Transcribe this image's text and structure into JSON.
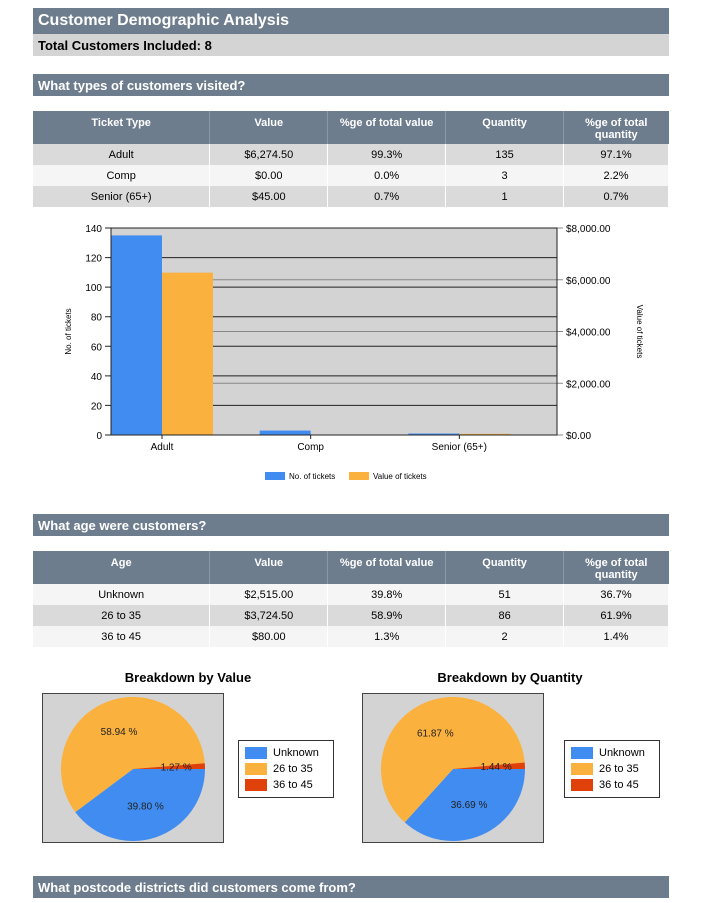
{
  "report": {
    "title": "Customer Demographic Analysis",
    "total_label": "Total Customers Included: 8"
  },
  "colors": {
    "header_bg": "#6e7d8e",
    "blue": "#418cf0",
    "orange": "#fab13e",
    "red": "#e0400a",
    "plot_bg": "#d3d3d3"
  },
  "sections": {
    "types": "What types of customers visited?",
    "age": "What age were customers?",
    "postcode": "What postcode districts did customers come from?"
  },
  "ticket_table": {
    "headers": [
      "Ticket Type",
      "Value",
      "%ge of total value",
      "Quantity",
      "%ge of total quantity"
    ],
    "rows": [
      [
        "Adult",
        "$6,274.50",
        "99.3%",
        "135",
        "97.1%"
      ],
      [
        "Comp",
        "$0.00",
        "0.0%",
        "3",
        "2.2%"
      ],
      [
        "Senior (65+)",
        "$45.00",
        "0.7%",
        "1",
        "0.7%"
      ]
    ]
  },
  "age_table": {
    "headers": [
      "Age",
      "Value",
      "%ge of total value",
      "Quantity",
      "%ge of total quantity"
    ],
    "rows": [
      [
        "Unknown",
        "$2,515.00",
        "39.8%",
        "51",
        "36.7%"
      ],
      [
        "26 to 35",
        "$3,724.50",
        "58.9%",
        "86",
        "61.9%"
      ],
      [
        "36 to 45",
        "$80.00",
        "1.3%",
        "2",
        "1.4%"
      ]
    ]
  },
  "chart_data": [
    {
      "type": "bar",
      "title": "",
      "categories": [
        "Adult",
        "Comp",
        "Senior (65+)"
      ],
      "series": [
        {
          "name": "No. of tickets",
          "axis": "left",
          "values": [
            135,
            3,
            1
          ],
          "color": "#418cf0"
        },
        {
          "name": "Value of tickets",
          "axis": "right",
          "values": [
            6274.5,
            0,
            45
          ],
          "color": "#fab13e"
        }
      ],
      "xlabel": "",
      "ylabel": "No. of tickets",
      "y2label": "Value of tickets",
      "ylim": [
        0,
        140
      ],
      "y2lim": [
        0,
        8000
      ],
      "yticks": [
        "0",
        "20",
        "40",
        "60",
        "80",
        "100",
        "120",
        "140"
      ],
      "y2ticks": [
        "$0.00",
        "$2,000.00",
        "$4,000.00",
        "$6,000.00",
        "$8,000.00"
      ],
      "grid": true,
      "legend": "bottom"
    },
    {
      "type": "pie",
      "title": "Breakdown by Value",
      "labels": [
        "Unknown",
        "26 to 35",
        "36 to 45"
      ],
      "values": [
        39.8,
        58.94,
        1.27
      ],
      "data_labels": [
        "39.80 %",
        "58.94 %",
        "1.27 %"
      ],
      "colors": [
        "#418cf0",
        "#fab13e",
        "#e0400a"
      ],
      "legend": "right"
    },
    {
      "type": "pie",
      "title": "Breakdown by Quantity",
      "labels": [
        "Unknown",
        "26 to 35",
        "36 to 45"
      ],
      "values": [
        36.69,
        61.87,
        1.44
      ],
      "data_labels": [
        "36.69 %",
        "61.87 %",
        "1.44 %"
      ],
      "colors": [
        "#418cf0",
        "#fab13e",
        "#e0400a"
      ],
      "legend": "right"
    }
  ]
}
